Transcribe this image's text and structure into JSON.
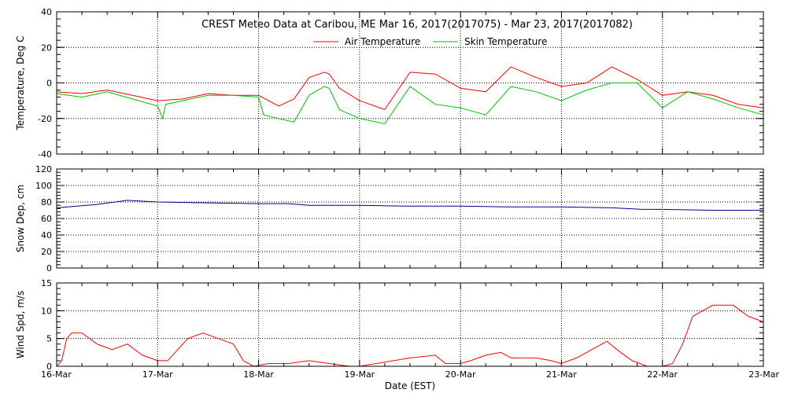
{
  "chart_data": [
    {
      "type": "line",
      "title": "CREST Meteo Data at Caribou, ME   Mar 16, 2017(2017075) - Mar 23, 2017(2017082)",
      "ylabel": "Temperature, Deg C",
      "ylim": [
        -40,
        40
      ],
      "yticks": [
        -40,
        -20,
        0,
        20,
        40
      ],
      "grid": true,
      "legend": "top-center",
      "x_unit": "days since Mar 16 00:00 EST",
      "series": [
        {
          "name": "Air Temperature",
          "color": "#ff0000",
          "x": [
            0,
            0.25,
            0.5,
            0.75,
            1.0,
            1.25,
            1.5,
            1.75,
            2.0,
            2.2,
            2.35,
            2.5,
            2.65,
            2.7,
            2.8,
            3.0,
            3.25,
            3.5,
            3.75,
            4.0,
            4.25,
            4.5,
            4.75,
            5.0,
            5.25,
            5.5,
            5.75,
            6.0,
            6.25,
            6.5,
            6.75,
            7.0
          ],
          "y": [
            -5,
            -6,
            -4,
            -7,
            -10,
            -9,
            -6,
            -7,
            -7,
            -13,
            -9,
            3,
            6,
            5,
            -3,
            -10,
            -15,
            6,
            5,
            -3,
            -5,
            9,
            3,
            -2,
            0,
            9,
            2,
            -7,
            -5,
            -7,
            -12,
            -14
          ]
        },
        {
          "name": "Skin Temperature",
          "color": "#00c000",
          "x": [
            0,
            0.25,
            0.5,
            0.75,
            1.0,
            1.05,
            1.08,
            1.25,
            1.5,
            1.75,
            2.0,
            2.05,
            2.2,
            2.35,
            2.5,
            2.65,
            2.7,
            2.8,
            3.0,
            3.25,
            3.5,
            3.75,
            4.0,
            4.25,
            4.5,
            4.75,
            5.0,
            5.25,
            5.5,
            5.75,
            6.0,
            6.25,
            6.5,
            6.75,
            7.0
          ],
          "y": [
            -6,
            -8,
            -5,
            -9,
            -13,
            -20,
            -12,
            -10,
            -7,
            -7,
            -8,
            -18,
            -20,
            -22,
            -7,
            -2,
            -3,
            -15,
            -20,
            -23,
            -2,
            -12,
            -14,
            -18,
            -2,
            -5,
            -10,
            -4,
            0,
            0,
            -14,
            -5,
            -9,
            -14,
            -18
          ]
        }
      ]
    },
    {
      "type": "line",
      "ylabel": "Snow Dep, cm",
      "ylim": [
        0,
        120
      ],
      "yticks": [
        0,
        20,
        40,
        60,
        80,
        100,
        120
      ],
      "grid": true,
      "series": [
        {
          "color": "#00008b",
          "x": [
            0,
            0.4,
            0.7,
            1.0,
            1.5,
            2.0,
            2.3,
            2.5,
            3.0,
            3.5,
            4.0,
            4.5,
            5.0,
            5.5,
            5.8,
            6.0,
            6.5,
            7.0
          ],
          "y": [
            73,
            77,
            82,
            80,
            79,
            78,
            78,
            76,
            76,
            75,
            75,
            74,
            74,
            73,
            71,
            71,
            70,
            70
          ]
        }
      ]
    },
    {
      "type": "line",
      "ylabel": "Wind Spd, m/s",
      "xlabel": "Date (EST)",
      "ylim": [
        0,
        15
      ],
      "yticks": [
        0,
        5,
        10,
        15
      ],
      "grid": true,
      "categories": [
        "16-Mar",
        "17-Mar",
        "18-Mar",
        "19-Mar",
        "20-Mar",
        "21-Mar",
        "22-Mar",
        "23-Mar"
      ],
      "series": [
        {
          "color": "#ff0000",
          "x": [
            0,
            0.05,
            0.1,
            0.15,
            0.25,
            0.4,
            0.55,
            0.7,
            0.85,
            1.0,
            1.1,
            1.2,
            1.3,
            1.45,
            1.6,
            1.75,
            1.85,
            1.95,
            2.1,
            2.3,
            2.5,
            2.7,
            2.9,
            3.0,
            3.5,
            3.75,
            3.85,
            4.0,
            4.1,
            4.25,
            4.4,
            4.5,
            4.6,
            4.75,
            4.9,
            5.0,
            5.15,
            5.3,
            5.45,
            5.55,
            5.7,
            5.85,
            6.0,
            6.1,
            6.2,
            6.3,
            6.5,
            6.7,
            6.85,
            7.0
          ],
          "y": [
            0,
            1,
            5,
            6,
            6,
            4,
            3,
            4,
            2,
            1,
            1,
            3,
            5,
            6,
            5,
            4,
            1,
            0,
            0.5,
            0.5,
            1,
            0.5,
            0,
            0,
            1.5,
            2,
            0.5,
            0.5,
            1,
            2,
            2.5,
            1.5,
            1.5,
            1.5,
            1,
            0.5,
            1.5,
            3,
            4.5,
            3,
            1,
            0,
            0,
            0.5,
            4,
            9,
            11,
            11,
            9,
            8
          ]
        }
      ]
    }
  ]
}
